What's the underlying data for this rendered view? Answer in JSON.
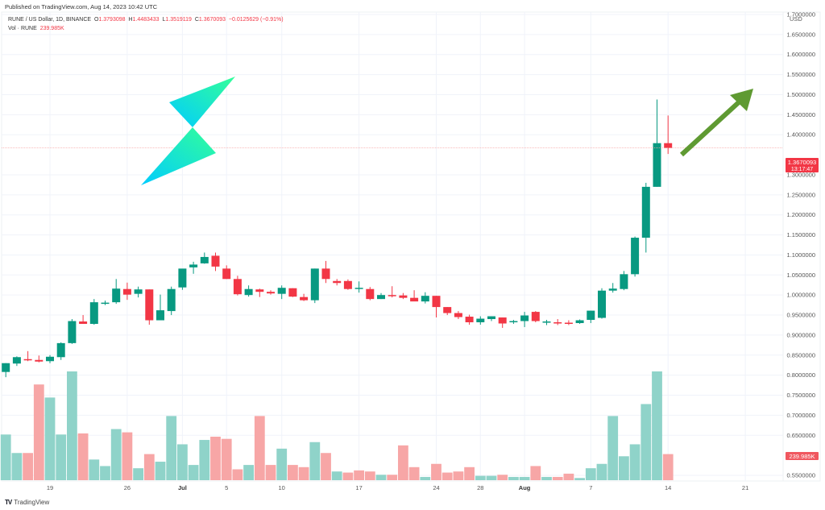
{
  "header": {
    "published": "Published on TradingView.com, Aug 14, 2023 10:42 UTC"
  },
  "legend": {
    "symbol": "RUNE / US Dollar, 1D, BINANCE",
    "open_label": "O",
    "open": "1.3793098",
    "high_label": "H",
    "high": "1.4483433",
    "low_label": "L",
    "low": "1.3519119",
    "close_label": "C",
    "close": "1.3670093",
    "change": "−0.0125629 (−0.91%)",
    "vol_label": "Vol · RUNE",
    "vol_value": "239.985K"
  },
  "axis": {
    "currency": "USD",
    "price_badge": "1.3670093",
    "countdown_badge": "13:17:47",
    "volume_badge": "239.985K"
  },
  "footer": {
    "brand": "TradingView",
    "logo": "TV"
  },
  "colors": {
    "up": "#089981",
    "down": "#f23645",
    "vol_up": "#8fd3c9",
    "vol_down": "#f7a6a6",
    "arrow": "#5f9a32",
    "logo_start": "#00ccff",
    "logo_end": "#33ff99",
    "grid": "#f0f3fa"
  },
  "chart_data": {
    "type": "candlestick",
    "title": "RUNE / US Dollar, 1D, BINANCE",
    "xlabel": "",
    "ylabel": "USD",
    "ylim": [
      0.53,
      1.72
    ],
    "grid": true,
    "y_ticks": [
      "1.7000000",
      "1.6500000",
      "1.6000000",
      "1.5500000",
      "1.5000000",
      "1.4500000",
      "1.4000000",
      "1.3000000",
      "1.2500000",
      "1.2000000",
      "1.1500000",
      "1.1000000",
      "1.0500000",
      "1.0000000",
      "0.9500000",
      "0.9000000",
      "0.8500000",
      "0.8000000",
      "0.7500000",
      "0.7000000",
      "0.6500000",
      "0.5500000"
    ],
    "x_ticks": [
      {
        "label": "19",
        "day": 4,
        "bold": false
      },
      {
        "label": "26",
        "day": 11,
        "bold": false
      },
      {
        "label": "Jul",
        "day": 16,
        "bold": true
      },
      {
        "label": "5",
        "day": 20,
        "bold": false
      },
      {
        "label": "10",
        "day": 25,
        "bold": false
      },
      {
        "label": "17",
        "day": 32,
        "bold": false
      },
      {
        "label": "24",
        "day": 39,
        "bold": false
      },
      {
        "label": "28",
        "day": 43,
        "bold": false
      },
      {
        "label": "Aug",
        "day": 47,
        "bold": true
      },
      {
        "label": "7",
        "day": 53,
        "bold": false
      },
      {
        "label": "14",
        "day": 60,
        "bold": false
      },
      {
        "label": "21",
        "day": 67,
        "bold": false
      }
    ],
    "first_date": "2023-06-15",
    "candles": [
      {
        "o": 0.808,
        "h": 0.83,
        "l": 0.795,
        "c": 0.83
      },
      {
        "o": 0.829,
        "h": 0.847,
        "l": 0.823,
        "c": 0.845
      },
      {
        "o": 0.84,
        "h": 0.86,
        "l": 0.835,
        "c": 0.838
      },
      {
        "o": 0.838,
        "h": 0.849,
        "l": 0.832,
        "c": 0.834
      },
      {
        "o": 0.835,
        "h": 0.85,
        "l": 0.83,
        "c": 0.846
      },
      {
        "o": 0.845,
        "h": 0.882,
        "l": 0.838,
        "c": 0.88
      },
      {
        "o": 0.88,
        "h": 0.94,
        "l": 0.878,
        "c": 0.935
      },
      {
        "o": 0.934,
        "h": 0.95,
        "l": 0.928,
        "c": 0.928
      },
      {
        "o": 0.928,
        "h": 0.99,
        "l": 0.926,
        "c": 0.982
      },
      {
        "o": 0.979,
        "h": 0.986,
        "l": 0.975,
        "c": 0.981
      },
      {
        "o": 0.982,
        "h": 1.04,
        "l": 0.978,
        "c": 1.016
      },
      {
        "o": 1.015,
        "h": 1.031,
        "l": 0.988,
        "c": 1.001
      },
      {
        "o": 1.003,
        "h": 1.021,
        "l": 0.994,
        "c": 1.014
      },
      {
        "o": 1.014,
        "h": 1.014,
        "l": 0.926,
        "c": 0.937
      },
      {
        "o": 0.937,
        "h": 1.001,
        "l": 0.937,
        "c": 0.962
      },
      {
        "o": 0.96,
        "h": 1.021,
        "l": 0.95,
        "c": 1.015
      },
      {
        "o": 1.019,
        "h": 1.064,
        "l": 1.013,
        "c": 1.066
      },
      {
        "o": 1.069,
        "h": 1.083,
        "l": 1.053,
        "c": 1.076
      },
      {
        "o": 1.079,
        "h": 1.106,
        "l": 1.078,
        "c": 1.095
      },
      {
        "o": 1.098,
        "h": 1.106,
        "l": 1.06,
        "c": 1.071
      },
      {
        "o": 1.066,
        "h": 1.074,
        "l": 1.04,
        "c": 1.04
      },
      {
        "o": 1.04,
        "h": 1.048,
        "l": 0.999,
        "c": 1.002
      },
      {
        "o": 1.0,
        "h": 1.024,
        "l": 0.996,
        "c": 1.015
      },
      {
        "o": 1.014,
        "h": 1.016,
        "l": 0.995,
        "c": 1.008
      },
      {
        "o": 1.008,
        "h": 1.012,
        "l": 1.001,
        "c": 1.004
      },
      {
        "o": 1.003,
        "h": 1.024,
        "l": 0.99,
        "c": 1.018
      },
      {
        "o": 1.017,
        "h": 1.017,
        "l": 0.995,
        "c": 0.996
      },
      {
        "o": 0.995,
        "h": 1.003,
        "l": 0.985,
        "c": 0.987
      },
      {
        "o": 0.987,
        "h": 1.066,
        "l": 0.98,
        "c": 1.066
      },
      {
        "o": 1.066,
        "h": 1.085,
        "l": 1.03,
        "c": 1.04
      },
      {
        "o": 1.035,
        "h": 1.04,
        "l": 1.024,
        "c": 1.03
      },
      {
        "o": 1.035,
        "h": 1.039,
        "l": 1.013,
        "c": 1.015
      },
      {
        "o": 1.018,
        "h": 1.034,
        "l": 1.006,
        "c": 1.018
      },
      {
        "o": 1.015,
        "h": 1.02,
        "l": 0.987,
        "c": 0.99
      },
      {
        "o": 0.99,
        "h": 1.005,
        "l": 0.99,
        "c": 1.0
      },
      {
        "o": 1.0,
        "h": 1.022,
        "l": 0.994,
        "c": 0.999
      },
      {
        "o": 0.999,
        "h": 1.005,
        "l": 0.99,
        "c": 0.993
      },
      {
        "o": 0.993,
        "h": 1.012,
        "l": 0.986,
        "c": 0.984
      },
      {
        "o": 0.984,
        "h": 1.007,
        "l": 0.979,
        "c": 0.998
      },
      {
        "o": 0.998,
        "h": 0.998,
        "l": 0.944,
        "c": 0.97
      },
      {
        "o": 0.97,
        "h": 0.97,
        "l": 0.95,
        "c": 0.955
      },
      {
        "o": 0.955,
        "h": 0.96,
        "l": 0.94,
        "c": 0.945
      },
      {
        "o": 0.946,
        "h": 0.951,
        "l": 0.926,
        "c": 0.932
      },
      {
        "o": 0.932,
        "h": 0.947,
        "l": 0.926,
        "c": 0.941
      },
      {
        "o": 0.94,
        "h": 0.947,
        "l": 0.935,
        "c": 0.947
      },
      {
        "o": 0.944,
        "h": 0.944,
        "l": 0.918,
        "c": 0.929
      },
      {
        "o": 0.932,
        "h": 0.938,
        "l": 0.928,
        "c": 0.935
      },
      {
        "o": 0.935,
        "h": 0.958,
        "l": 0.92,
        "c": 0.949
      },
      {
        "o": 0.958,
        "h": 0.96,
        "l": 0.932,
        "c": 0.935
      },
      {
        "o": 0.933,
        "h": 0.938,
        "l": 0.925,
        "c": 0.934
      },
      {
        "o": 0.932,
        "h": 0.94,
        "l": 0.925,
        "c": 0.93
      },
      {
        "o": 0.931,
        "h": 0.937,
        "l": 0.925,
        "c": 0.93
      },
      {
        "o": 0.93,
        "h": 0.939,
        "l": 0.928,
        "c": 0.937
      },
      {
        "o": 0.938,
        "h": 0.961,
        "l": 0.93,
        "c": 0.961
      },
      {
        "o": 0.943,
        "h": 1.017,
        "l": 0.941,
        "c": 1.011
      },
      {
        "o": 1.011,
        "h": 1.03,
        "l": 1.006,
        "c": 1.016
      },
      {
        "o": 1.015,
        "h": 1.06,
        "l": 1.012,
        "c": 1.052
      },
      {
        "o": 1.052,
        "h": 1.146,
        "l": 1.046,
        "c": 1.143
      },
      {
        "o": 1.143,
        "h": 1.28,
        "l": 1.106,
        "c": 1.27
      },
      {
        "o": 1.27,
        "h": 1.488,
        "l": 1.27,
        "c": 1.379
      },
      {
        "o": 1.379,
        "h": 1.448,
        "l": 1.352,
        "c": 1.367
      }
    ],
    "volume": [
      {
        "v": 0.42,
        "up": true
      },
      {
        "v": 0.25,
        "up": true
      },
      {
        "v": 0.25,
        "up": false
      },
      {
        "v": 0.88,
        "up": false
      },
      {
        "v": 0.76,
        "up": true
      },
      {
        "v": 0.42,
        "up": true
      },
      {
        "v": 1.0,
        "up": true
      },
      {
        "v": 0.43,
        "up": false
      },
      {
        "v": 0.19,
        "up": true
      },
      {
        "v": 0.13,
        "up": true
      },
      {
        "v": 0.47,
        "up": true
      },
      {
        "v": 0.44,
        "up": false
      },
      {
        "v": 0.11,
        "up": true
      },
      {
        "v": 0.24,
        "up": false
      },
      {
        "v": 0.17,
        "up": true
      },
      {
        "v": 0.59,
        "up": true
      },
      {
        "v": 0.33,
        "up": true
      },
      {
        "v": 0.14,
        "up": true
      },
      {
        "v": 0.37,
        "up": true
      },
      {
        "v": 0.4,
        "up": false
      },
      {
        "v": 0.38,
        "up": false
      },
      {
        "v": 0.1,
        "up": false
      },
      {
        "v": 0.14,
        "up": true
      },
      {
        "v": 0.59,
        "up": false
      },
      {
        "v": 0.14,
        "up": false
      },
      {
        "v": 0.29,
        "up": true
      },
      {
        "v": 0.14,
        "up": false
      },
      {
        "v": 0.12,
        "up": false
      },
      {
        "v": 0.35,
        "up": true
      },
      {
        "v": 0.25,
        "up": false
      },
      {
        "v": 0.08,
        "up": true
      },
      {
        "v": 0.07,
        "up": false
      },
      {
        "v": 0.09,
        "up": false
      },
      {
        "v": 0.08,
        "up": false
      },
      {
        "v": 0.05,
        "up": true
      },
      {
        "v": 0.05,
        "up": false
      },
      {
        "v": 0.32,
        "up": false
      },
      {
        "v": 0.12,
        "up": false
      },
      {
        "v": 0.03,
        "up": true
      },
      {
        "v": 0.15,
        "up": false
      },
      {
        "v": 0.07,
        "up": false
      },
      {
        "v": 0.08,
        "up": false
      },
      {
        "v": 0.12,
        "up": false
      },
      {
        "v": 0.04,
        "up": true
      },
      {
        "v": 0.04,
        "up": true
      },
      {
        "v": 0.05,
        "up": false
      },
      {
        "v": 0.03,
        "up": true
      },
      {
        "v": 0.03,
        "up": true
      },
      {
        "v": 0.13,
        "up": false
      },
      {
        "v": 0.03,
        "up": true
      },
      {
        "v": 0.03,
        "up": false
      },
      {
        "v": 0.06,
        "up": false
      },
      {
        "v": 0.02,
        "up": true
      },
      {
        "v": 0.11,
        "up": true
      },
      {
        "v": 0.15,
        "up": true
      },
      {
        "v": 0.59,
        "up": true
      },
      {
        "v": 0.22,
        "up": true
      },
      {
        "v": 0.33,
        "up": true
      },
      {
        "v": 0.7,
        "up": true
      },
      {
        "v": 1.0,
        "up": true
      },
      {
        "v": 0.24,
        "up": false
      }
    ],
    "last_volume": "239.985K",
    "annotations": [
      "THORChain logo (gradient lightning)",
      "Green upward arrow"
    ]
  }
}
